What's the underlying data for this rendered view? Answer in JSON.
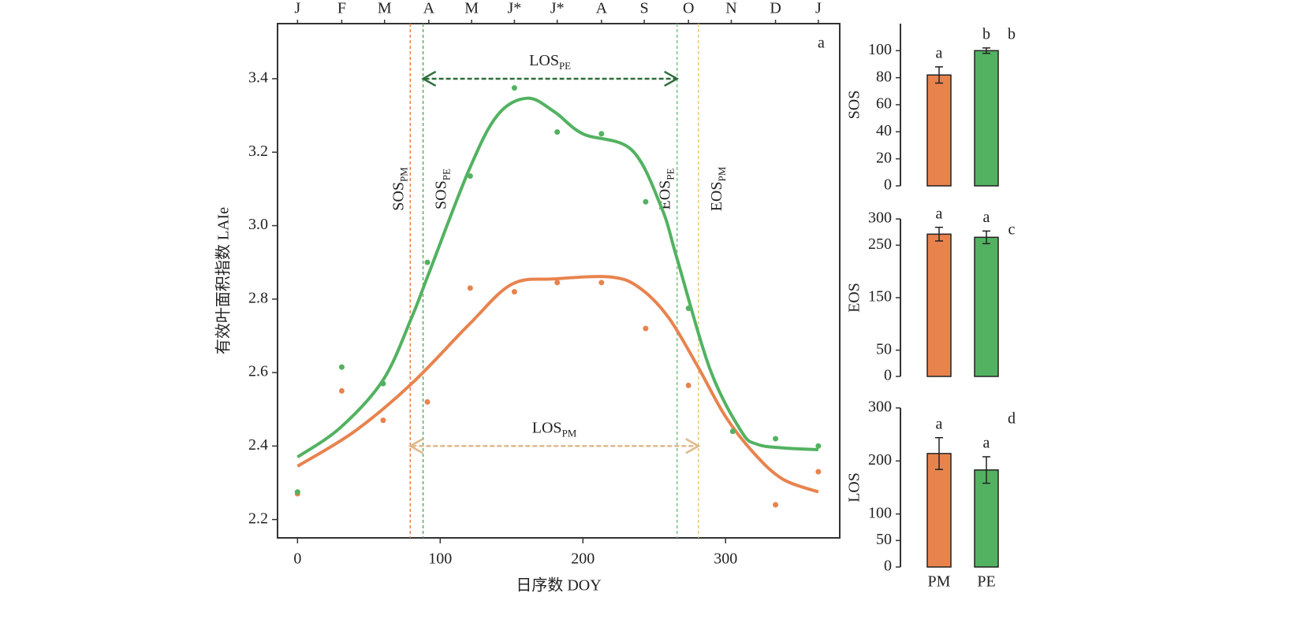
{
  "chart_data": [
    {
      "type": "line",
      "xlabel": "日序数 DOY",
      "ylabel": "有效叶面积指数 LAIe",
      "panel": "a",
      "xlim": [
        -14,
        380
      ],
      "ylim": [
        2.15,
        3.55
      ],
      "xticks": [
        0,
        100,
        200,
        300
      ],
      "yticks": [
        2.2,
        2.4,
        2.6,
        2.8,
        {
          "value": 3,
          "label": "3.0"
        },
        3.2,
        3.4
      ],
      "top_ticks": [
        {
          "value": 0,
          "label": "J"
        },
        {
          "value": 31,
          "label": "F"
        },
        {
          "value": 61,
          "label": "M"
        },
        {
          "value": 92,
          "label": "A"
        },
        {
          "value": 122,
          "label": "M"
        },
        {
          "value": 152,
          "label": "J*"
        },
        {
          "value": 182,
          "label": "J*"
        },
        {
          "value": 213,
          "label": "A"
        },
        {
          "value": 243,
          "label": "S"
        },
        {
          "value": 274,
          "label": "O"
        },
        {
          "value": 304,
          "label": "N"
        },
        {
          "value": 335,
          "label": "D"
        },
        {
          "value": 365,
          "label": "J"
        }
      ],
      "series": [
        {
          "style": "line",
          "color": "#e8834e",
          "x": [
            0,
            40,
            80,
            120,
            150,
            180,
            220,
            240,
            260,
            280,
            300,
            320,
            340,
            365
          ],
          "values": [
            2.345,
            2.44,
            2.57,
            2.73,
            2.84,
            2.855,
            2.86,
            2.83,
            2.75,
            2.62,
            2.48,
            2.38,
            2.31,
            2.275
          ]
        },
        {
          "style": "line",
          "color": "#52b261",
          "x": [
            0,
            30,
            60,
            80,
            92,
            120,
            140,
            161,
            180,
            200,
            234,
            255,
            266,
            289,
            311,
            322,
            340,
            365
          ],
          "values": [
            2.37,
            2.45,
            2.58,
            2.75,
            2.87,
            3.15,
            3.3,
            3.347,
            3.31,
            3.25,
            3.207,
            3.05,
            2.91,
            2.61,
            2.44,
            2.405,
            2.395,
            2.39
          ]
        },
        {
          "style": "points",
          "color": "#e8834e",
          "x": [
            0,
            31,
            60,
            91,
            121,
            152,
            182,
            213,
            244,
            274,
            335,
            365
          ],
          "values": [
            2.27,
            2.55,
            2.47,
            2.52,
            2.83,
            2.82,
            2.845,
            2.845,
            2.72,
            2.565,
            2.24,
            2.33
          ]
        },
        {
          "style": "points",
          "color": "#52b261",
          "x": [
            0,
            31,
            60,
            91,
            121,
            152,
            182,
            213,
            244,
            274,
            305,
            335,
            365
          ],
          "values": [
            2.275,
            2.615,
            2.57,
            2.9,
            3.135,
            3.375,
            3.255,
            3.25,
            3.065,
            2.775,
            2.44,
            2.42,
            2.4
          ]
        }
      ],
      "vlines": [
        {
          "x": 79,
          "color": "#e8834e",
          "label": "SOS",
          "sub": "PM"
        },
        {
          "x": 88,
          "color": "#52b261",
          "label": "SOS",
          "sub": "PE"
        },
        {
          "x": 266,
          "color": "#7cc486",
          "label": "EOS",
          "sub": "PE"
        },
        {
          "x": 281,
          "color": "#e8c77a",
          "label": "EOS",
          "sub": "PM"
        }
      ],
      "spans": [
        {
          "from": 88,
          "to": 266,
          "y": 3.4,
          "color": "#2d6e3a",
          "label": "LOS",
          "sub": "PE"
        },
        {
          "from": 79,
          "to": 281,
          "y": 2.4,
          "color": "#e0b88a",
          "label": "LOS",
          "sub": "PM"
        }
      ]
    },
    {
      "type": "bar",
      "ylabel": "SOS",
      "panel": "b",
      "values": [
        82,
        100
      ],
      "errors": [
        6,
        2
      ],
      "letters": [
        "a",
        "b"
      ],
      "colors": [
        "#e8834e",
        "#52b261"
      ],
      "ylim": [
        0,
        120
      ],
      "yticks": [
        0,
        20,
        40,
        60,
        80,
        100
      ]
    },
    {
      "type": "bar",
      "ylabel": "EOS",
      "panel": "c",
      "values": [
        271,
        265
      ],
      "errors": [
        13,
        12
      ],
      "letters": [
        "a",
        "a"
      ],
      "colors": [
        "#e8834e",
        "#52b261"
      ],
      "ylim": [
        0,
        300
      ],
      "yticks": [
        0,
        50,
        150,
        250,
        300
      ]
    },
    {
      "type": "bar",
      "ylabel": "LOS",
      "panel": "d",
      "categories": [
        "PM",
        "PE"
      ],
      "values": [
        214,
        183
      ],
      "errors": [
        30,
        25
      ],
      "letters": [
        "a",
        "a"
      ],
      "colors": [
        "#e8834e",
        "#52b261"
      ],
      "ylim": [
        0,
        300
      ],
      "yticks": [
        0,
        50,
        100,
        200,
        300
      ]
    }
  ]
}
